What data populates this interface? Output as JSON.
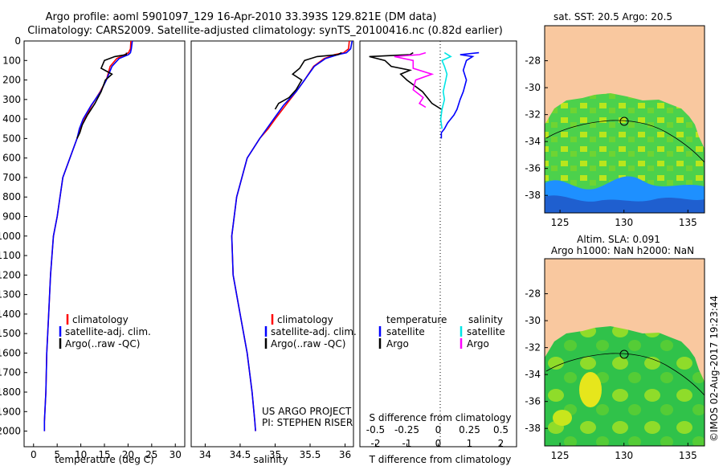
{
  "title_line1": "Argo profile: aoml 5901097_129 16-Apr-2010 33.393S 129.821E (DM data)",
  "title_line2": "Climatology: CARS2009. Satellite-adjusted climatology: synTS_20100416.nc (0.82d earlier)",
  "side_label": "©IMOS 02-Aug-2017 19:23:44",
  "colors": {
    "climatology": "#ff0000",
    "satellite": "#0000ff",
    "argo": "#000000",
    "salinity_satellite": "#00e5e5",
    "salinity_argo": "#ff00ff",
    "land": "#f9c89f"
  },
  "chart_data": [
    {
      "type": "line",
      "xlabel": "temperature (deg C)",
      "x_ticks": [
        "0",
        "5",
        "10",
        "15",
        "20",
        "25",
        "30"
      ],
      "y_ticks": [
        "0",
        "100",
        "200",
        "300",
        "400",
        "500",
        "600",
        "700",
        "800",
        "900",
        "1000",
        "1100",
        "1200",
        "1300",
        "1400",
        "1500",
        "1600",
        "1700",
        "1800",
        "1900",
        "2000"
      ],
      "xlim": [
        -2,
        32
      ],
      "ylim": [
        2080,
        0
      ],
      "grid": false,
      "legend": [
        "climatology",
        "satellite-adj. clim.",
        "Argo(..raw -QC)"
      ],
      "series": [
        {
          "name": "climatology",
          "color_key": "climatology",
          "x": [
            20.6,
            20.5,
            20.1,
            19.3,
            17.6,
            16.2,
            15.4,
            14.1,
            12.3,
            10.8,
            9.9,
            9.2,
            6.2,
            5.0,
            4.2,
            3.6,
            3.2,
            2.8,
            2.6,
            2.3,
            2.3
          ],
          "y": [
            0,
            40,
            60,
            70,
            90,
            130,
            200,
            260,
            330,
            400,
            450,
            500,
            700,
            900,
            1000,
            1200,
            1400,
            1600,
            1800,
            1950,
            2000
          ]
        },
        {
          "name": "satellite-adj. clim.",
          "color_key": "satellite",
          "x": [
            20.9,
            20.7,
            20.5,
            20.1,
            18.1,
            16.6,
            15.4,
            14.2,
            12.2,
            10.5,
            9.7,
            9.2,
            6.2,
            5.0,
            4.2,
            3.6,
            3.2,
            2.8,
            2.6,
            2.3,
            2.3
          ],
          "y": [
            0,
            40,
            60,
            70,
            90,
            130,
            200,
            260,
            330,
            400,
            450,
            500,
            700,
            900,
            1000,
            1200,
            1400,
            1600,
            1800,
            1950,
            2000
          ]
        },
        {
          "name": "Argo(..raw -QC)",
          "color_key": "argo",
          "x": [
            19.7,
            19.6,
            17.2,
            15.0,
            14.3,
            16.6,
            15.2,
            14.3,
            13.0,
            11.4,
            10.3,
            9.8,
            9.2
          ],
          "y": [
            60,
            70,
            80,
            100,
            140,
            170,
            200,
            260,
            320,
            380,
            430,
            470,
            500
          ]
        }
      ]
    },
    {
      "type": "line",
      "xlabel": "salinity",
      "x_ticks": [
        "34",
        "34.5",
        "35",
        "35.5",
        "36"
      ],
      "xlim": [
        33.8,
        36.12
      ],
      "ylim": [
        2080,
        0
      ],
      "grid": false,
      "legend": [
        "climatology",
        "satellite-adj. clim.",
        "Argo(..raw -QC)"
      ],
      "annotation_line1": "US ARGO PROJECT",
      "annotation_line2": "PI: STEPHEN RISER",
      "series": [
        {
          "name": "climatology",
          "color_key": "climatology",
          "x": [
            36.06,
            36.05,
            35.98,
            35.85,
            35.7,
            35.55,
            35.42,
            35.3,
            35.15,
            35.0,
            34.9,
            34.78,
            34.6,
            34.45,
            34.38,
            34.4,
            34.5,
            34.6,
            34.67,
            34.71,
            34.72
          ],
          "y": [
            0,
            40,
            60,
            70,
            90,
            130,
            200,
            260,
            330,
            400,
            450,
            500,
            600,
            800,
            1000,
            1200,
            1400,
            1600,
            1800,
            1950,
            2000
          ]
        },
        {
          "name": "satellite-adj. clim.",
          "color_key": "satellite",
          "x": [
            36.1,
            36.08,
            36.02,
            35.9,
            35.72,
            35.56,
            35.42,
            35.3,
            35.12,
            34.98,
            34.88,
            34.78,
            34.6,
            34.45,
            34.38,
            34.4,
            34.5,
            34.6,
            34.67,
            34.71,
            34.72
          ],
          "y": [
            0,
            40,
            60,
            70,
            90,
            130,
            200,
            260,
            330,
            400,
            450,
            500,
            600,
            800,
            1000,
            1200,
            1400,
            1600,
            1800,
            1950,
            2000
          ]
        },
        {
          "name": "Argo(..raw -QC)",
          "color_key": "argo",
          "x": [
            35.95,
            35.9,
            35.6,
            35.42,
            35.35,
            35.25,
            35.38,
            35.3,
            35.2,
            35.05,
            35.0
          ],
          "y": [
            60,
            70,
            80,
            100,
            140,
            170,
            200,
            250,
            290,
            320,
            350
          ]
        }
      ]
    },
    {
      "type": "line",
      "xlabel_bottom": "T difference from climatology",
      "xlabel_top": "S difference from climatology",
      "t_ticks": [
        "-2",
        "-1",
        "0",
        "1",
        "2"
      ],
      "s_ticks": [
        "-0.5",
        "-0.25",
        "0",
        "0.25",
        "0.5"
      ],
      "t_xlim": [
        -2.5,
        2.5
      ],
      "s_xlim": [
        -0.625,
        0.625
      ],
      "ylim": [
        2080,
        0
      ],
      "legend_temperature_title": "temperature",
      "legend_salinity_title": "salinity",
      "legend_temperature": [
        "satellite",
        "Argo"
      ],
      "legend_salinity": [
        "satellite",
        "Argo"
      ],
      "series": [
        {
          "name": "temperature satellite",
          "color_key": "satellite",
          "axis": "T",
          "x": [
            1.3,
            0.7,
            1.1,
            0.9,
            0.8,
            0.9,
            0.8,
            0.7,
            0.6,
            0.5,
            0.4,
            0.3,
            0.2,
            0.1,
            0.1
          ],
          "y": [
            60,
            70,
            80,
            100,
            150,
            200,
            260,
            300,
            350,
            380,
            400,
            420,
            450,
            470,
            500
          ]
        },
        {
          "name": "temperature Argo",
          "color_key": "argo",
          "axis": "T",
          "x": [
            -0.8,
            -0.9,
            -2.2,
            -1.7,
            -1.5,
            -0.9,
            -1.2,
            -1.0,
            -0.5,
            -0.2,
            0.1
          ],
          "y": [
            60,
            70,
            80,
            100,
            130,
            150,
            170,
            200,
            260,
            320,
            350
          ]
        },
        {
          "name": "salinity satellite",
          "color_key": "salinity_satellite",
          "axis": "S",
          "x": [
            0.05,
            0.1,
            0.03,
            0.05,
            0.07,
            0.06,
            0.04,
            0.05,
            0.03,
            0.02,
            0.03
          ],
          "y": [
            60,
            80,
            100,
            130,
            170,
            200,
            260,
            300,
            350,
            400,
            450
          ]
        },
        {
          "name": "salinity Argo",
          "color_key": "salinity_argo",
          "axis": "S",
          "x": [
            -0.1,
            -0.15,
            -0.35,
            -0.2,
            -0.2,
            -0.05,
            -0.18,
            -0.2,
            -0.12,
            -0.15,
            -0.1
          ],
          "y": [
            60,
            70,
            80,
            100,
            140,
            170,
            200,
            250,
            290,
            320,
            340
          ]
        }
      ]
    },
    {
      "type": "heatmap",
      "title": "sat. SST: 20.5 Argo: 20.5",
      "x_ticks": [
        "125",
        "130",
        "135"
      ],
      "y_ticks": [
        "-28",
        "-30",
        "-32",
        "-34",
        "-36",
        "-38"
      ],
      "xlim": [
        123.8,
        136.3
      ],
      "ylim": [
        -39.3,
        -25.4
      ],
      "argo_position": [
        129.8,
        -33.4
      ]
    },
    {
      "type": "heatmap",
      "title_line1": "Altim. SLA: 0.091",
      "title_line2": "Argo h1000: NaN h2000: NaN",
      "x_ticks": [
        "125",
        "130",
        "135"
      ],
      "y_ticks": [
        "-28",
        "-30",
        "-32",
        "-34",
        "-36",
        "-38"
      ],
      "xlim": [
        123.8,
        136.3
      ],
      "ylim": [
        -39.3,
        -25.4
      ],
      "argo_position": [
        129.8,
        -33.4
      ]
    }
  ]
}
